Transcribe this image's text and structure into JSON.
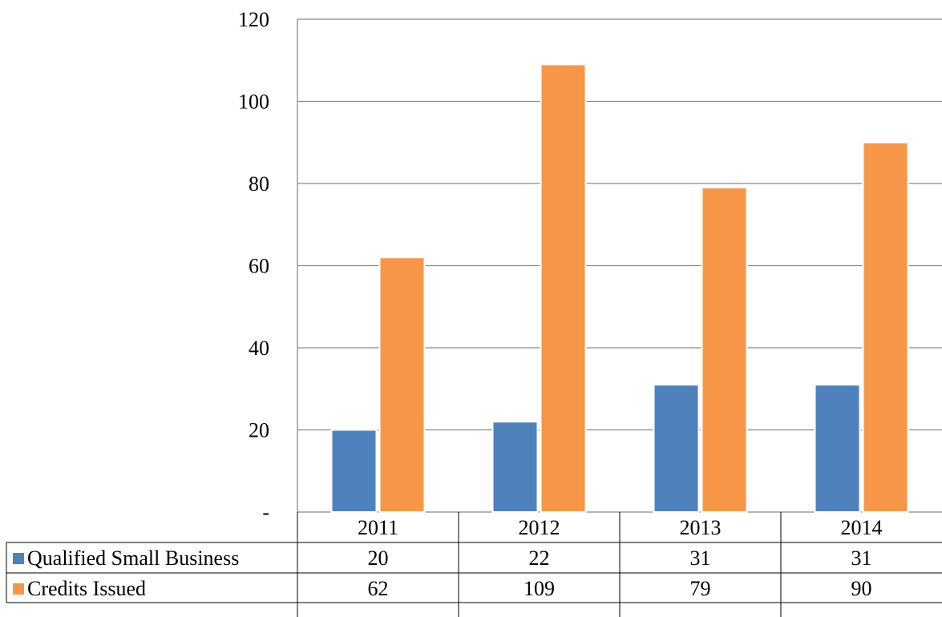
{
  "chart_data": {
    "type": "bar",
    "categories": [
      "2011",
      "2012",
      "2013",
      "2014"
    ],
    "series": [
      {
        "name": "Qualified Small Business",
        "values": [
          20,
          22,
          31,
          31
        ],
        "color": "#4f81bd"
      },
      {
        "name": "Credits Issued",
        "values": [
          62,
          109,
          79,
          90
        ],
        "color": "#f79646"
      }
    ],
    "y_ticks": [
      {
        "value": 0,
        "label": "-"
      },
      {
        "value": 20,
        "label": "20"
      },
      {
        "value": 40,
        "label": "40"
      },
      {
        "value": 60,
        "label": "60"
      },
      {
        "value": 80,
        "label": "80"
      },
      {
        "value": 100,
        "label": "100"
      },
      {
        "value": 120,
        "label": "120"
      }
    ],
    "ylim": [
      0,
      120
    ],
    "grid": true,
    "legend": "data-table-left",
    "title": "",
    "xlabel": "",
    "ylabel": "",
    "gridline_color": "#898989"
  }
}
